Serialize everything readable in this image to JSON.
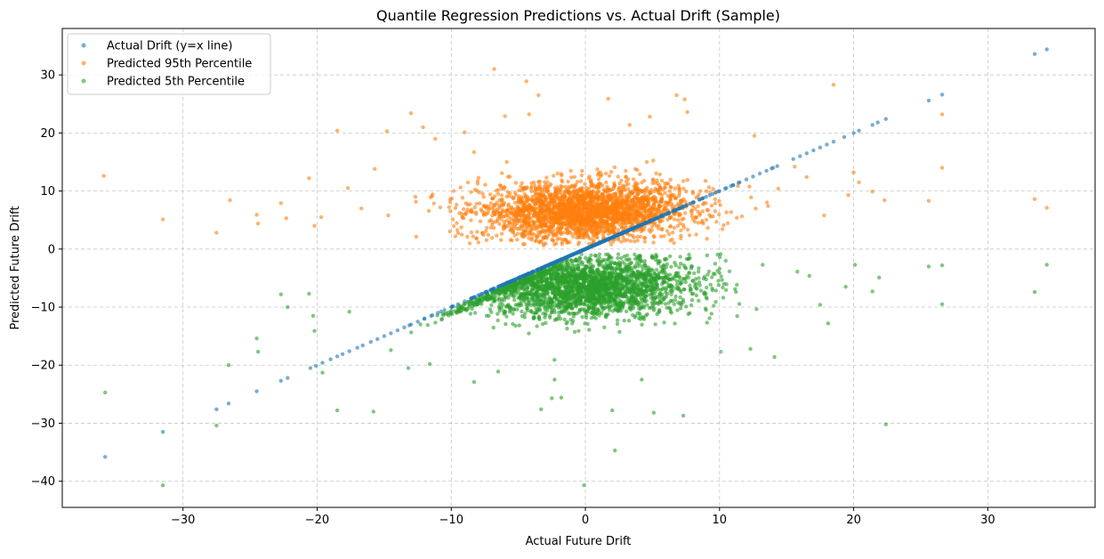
{
  "chart_data": {
    "type": "scatter",
    "title": "Quantile Regression Predictions vs. Actual Drift (Sample)",
    "xlabel": "Actual Future Drift",
    "ylabel": "Predicted Future Drift",
    "xlim": [
      -39,
      38
    ],
    "ylim": [
      -44.5,
      38
    ],
    "xticks": [
      -30,
      -20,
      -10,
      0,
      10,
      20,
      30
    ],
    "yticks": [
      -40,
      -30,
      -20,
      -10,
      0,
      10,
      20,
      30
    ],
    "xtick_labels": [
      "−30",
      "−20",
      "−10",
      "0",
      "10",
      "20",
      "30"
    ],
    "ytick_labels": [
      "−40",
      "−30",
      "−20",
      "−10",
      "0",
      "10",
      "20",
      "30"
    ],
    "grid": true,
    "legend_position": "upper-left",
    "series": [
      {
        "name": "Actual Drift (y=x line)",
        "color": "#1f77b4",
        "points": [
          [
            -35.8,
            -35.8
          ],
          [
            -31.5,
            -31.5
          ],
          [
            -27.5,
            -27.6
          ],
          [
            -26.6,
            -26.6
          ],
          [
            -24.5,
            -24.5
          ],
          [
            -22.7,
            -22.7
          ],
          [
            -22.2,
            -22.2
          ],
          [
            -20.5,
            -20.5
          ],
          [
            -20.1,
            -20.1
          ],
          [
            -19.6,
            -19.6
          ],
          [
            -19.0,
            -19.0
          ],
          [
            -18.5,
            -18.5
          ],
          [
            -18.1,
            -18.1
          ],
          [
            -17.6,
            -17.6
          ],
          [
            -17.0,
            -17.0
          ],
          [
            -16.6,
            -16.6
          ],
          [
            -16.0,
            -16.0
          ],
          [
            -15.5,
            -15.5
          ],
          [
            -15.0,
            -15.0
          ],
          [
            -14.5,
            -14.5
          ],
          [
            -14.0,
            -14.0
          ],
          [
            -13.5,
            -13.5
          ],
          [
            -13.0,
            -13.0
          ],
          [
            -12.5,
            -12.5
          ],
          [
            -12.0,
            -12.0
          ],
          [
            -11.5,
            -11.5
          ],
          [
            -11.0,
            -11.0
          ],
          [
            -10.5,
            -10.5
          ],
          [
            -10.0,
            -10.0
          ],
          [
            -9.5,
            -9.5
          ],
          [
            -9.0,
            -9.0
          ],
          [
            -8.5,
            -8.5
          ],
          [
            -8.0,
            -8.0
          ],
          [
            -7.5,
            -7.5
          ],
          [
            -7.0,
            -7.0
          ],
          [
            -6.5,
            -6.5
          ],
          [
            -6.0,
            -6.0
          ],
          [
            -5.5,
            -5.5
          ],
          [
            -5.0,
            -5.0
          ],
          [
            -4.5,
            -4.5
          ],
          [
            -4.0,
            -4.0
          ],
          [
            -3.5,
            -3.5
          ],
          [
            -3.0,
            -3.0
          ],
          [
            -2.5,
            -2.5
          ],
          [
            -2.0,
            -2.0
          ],
          [
            -1.5,
            -1.5
          ],
          [
            -1.0,
            -1.0
          ],
          [
            -0.5,
            -0.5
          ],
          [
            0.0,
            0.0
          ],
          [
            0.5,
            0.5
          ],
          [
            1.0,
            1.0
          ],
          [
            1.5,
            1.5
          ],
          [
            2.0,
            2.0
          ],
          [
            2.5,
            2.5
          ],
          [
            3.0,
            3.0
          ],
          [
            3.5,
            3.5
          ],
          [
            4.0,
            4.0
          ],
          [
            4.5,
            4.5
          ],
          [
            5.0,
            5.0
          ],
          [
            5.5,
            5.5
          ],
          [
            6.0,
            6.0
          ],
          [
            6.5,
            6.5
          ],
          [
            7.0,
            7.0
          ],
          [
            7.5,
            7.5
          ],
          [
            8.0,
            8.0
          ],
          [
            8.5,
            8.5
          ],
          [
            9.0,
            9.0
          ],
          [
            9.5,
            9.5
          ],
          [
            10.0,
            10.0
          ],
          [
            10.5,
            10.5
          ],
          [
            11.0,
            11.0
          ],
          [
            11.5,
            11.5
          ],
          [
            12.0,
            12.0
          ],
          [
            12.5,
            12.5
          ],
          [
            13.0,
            13.0
          ],
          [
            13.5,
            13.5
          ],
          [
            14.0,
            14.0
          ],
          [
            14.3,
            14.3
          ],
          [
            15.5,
            15.5
          ],
          [
            16.0,
            16.0
          ],
          [
            16.5,
            16.5
          ],
          [
            17.0,
            17.0
          ],
          [
            17.5,
            17.5
          ],
          [
            18.0,
            18.0
          ],
          [
            18.5,
            18.5
          ],
          [
            19.3,
            19.3
          ],
          [
            20.0,
            20.0
          ],
          [
            20.4,
            20.4
          ],
          [
            21.4,
            21.4
          ],
          [
            21.8,
            21.8
          ],
          [
            22.4,
            22.4
          ],
          [
            25.6,
            25.6
          ],
          [
            26.6,
            26.6
          ],
          [
            33.5,
            33.6
          ],
          [
            34.4,
            34.4
          ]
        ]
      },
      {
        "name": "Predicted 95th Percentile",
        "color": "#ff7f0e",
        "outliers": [
          [
            -35.9,
            12.6
          ],
          [
            -31.5,
            5.1
          ],
          [
            -27.5,
            2.8
          ],
          [
            -26.5,
            8.4
          ],
          [
            -24.5,
            5.9
          ],
          [
            -24.4,
            4.4
          ],
          [
            -22.7,
            7.9
          ],
          [
            -22.3,
            5.3
          ],
          [
            -20.6,
            12.2
          ],
          [
            -20.2,
            4.0
          ],
          [
            -19.7,
            5.5
          ],
          [
            -18.5,
            20.4
          ],
          [
            -17.7,
            10.5
          ],
          [
            -16.7,
            7.0
          ],
          [
            -15.7,
            13.8
          ],
          [
            -14.8,
            20.3
          ],
          [
            -14.7,
            5.8
          ],
          [
            -13.0,
            23.4
          ],
          [
            -12.1,
            21.0
          ],
          [
            -11.2,
            19.0
          ],
          [
            -9.0,
            20.1
          ],
          [
            -8.3,
            16.7
          ],
          [
            -6.8,
            31.0
          ],
          [
            -6.0,
            22.9
          ],
          [
            -4.4,
            28.9
          ],
          [
            -3.5,
            26.5
          ],
          [
            -4.2,
            23.2
          ],
          [
            1.7,
            25.9
          ],
          [
            3.3,
            21.4
          ],
          [
            4.8,
            22.8
          ],
          [
            6.8,
            26.5
          ],
          [
            7.4,
            25.8
          ],
          [
            7.6,
            23.6
          ],
          [
            12.6,
            19.5
          ],
          [
            15.6,
            14.2
          ],
          [
            16.5,
            12.4
          ],
          [
            17.8,
            5.8
          ],
          [
            18.5,
            28.3
          ],
          [
            19.6,
            9.3
          ],
          [
            20.0,
            13.2
          ],
          [
            20.4,
            11.5
          ],
          [
            21.4,
            9.9
          ],
          [
            22.3,
            8.4
          ],
          [
            25.6,
            8.3
          ],
          [
            26.6,
            23.2
          ],
          [
            26.6,
            14.0
          ],
          [
            33.5,
            8.6
          ],
          [
            34.4,
            7.1
          ]
        ],
        "cluster": {
          "x_center": 0,
          "x_std": 3.8,
          "y_center": 6.5,
          "y_std": 2.5,
          "count": 2600
        }
      },
      {
        "name": "Predicted 5th Percentile",
        "color": "#2ca02c",
        "outliers": [
          [
            -35.8,
            -24.7
          ],
          [
            -31.5,
            -40.7
          ],
          [
            -27.5,
            -30.4
          ],
          [
            -26.6,
            -20.0
          ],
          [
            -24.5,
            -15.4
          ],
          [
            -24.4,
            -17.7
          ],
          [
            -22.7,
            -7.8
          ],
          [
            -22.2,
            -10.0
          ],
          [
            -20.6,
            -7.7
          ],
          [
            -20.3,
            -11.5
          ],
          [
            -20.2,
            -14.1
          ],
          [
            -19.6,
            -21.3
          ],
          [
            -18.5,
            -27.8
          ],
          [
            -17.6,
            -10.8
          ],
          [
            -15.8,
            -28.0
          ],
          [
            -14.5,
            -17.4
          ],
          [
            -13.2,
            -20.5
          ],
          [
            -11.6,
            -19.8
          ],
          [
            -8.3,
            -22.9
          ],
          [
            -6.5,
            -21.1
          ],
          [
            -3.3,
            -27.6
          ],
          [
            -2.5,
            -25.7
          ],
          [
            -2.3,
            -22.5
          ],
          [
            -1.8,
            -25.6
          ],
          [
            -0.1,
            -40.7
          ],
          [
            2.0,
            -27.8
          ],
          [
            2.2,
            -34.7
          ],
          [
            4.2,
            -22.5
          ],
          [
            5.1,
            -28.2
          ],
          [
            7.3,
            -28.7
          ],
          [
            10.1,
            -17.7
          ],
          [
            12.3,
            -17.2
          ],
          [
            14.1,
            -18.6
          ],
          [
            15.8,
            -3.9
          ],
          [
            16.7,
            -4.6
          ],
          [
            17.5,
            -9.6
          ],
          [
            18.1,
            -12.8
          ],
          [
            19.4,
            -6.5
          ],
          [
            20.1,
            -2.7
          ],
          [
            21.4,
            -7.3
          ],
          [
            21.9,
            -4.9
          ],
          [
            22.4,
            -30.2
          ],
          [
            25.6,
            -3.0
          ],
          [
            26.6,
            -2.8
          ],
          [
            26.6,
            -9.5
          ],
          [
            33.5,
            -7.4
          ],
          [
            34.4,
            -2.7
          ]
        ],
        "cluster": {
          "x_center": 0,
          "x_std": 4.0,
          "y_center": -6.5,
          "y_std": 2.6,
          "count": 2600
        }
      }
    ]
  }
}
